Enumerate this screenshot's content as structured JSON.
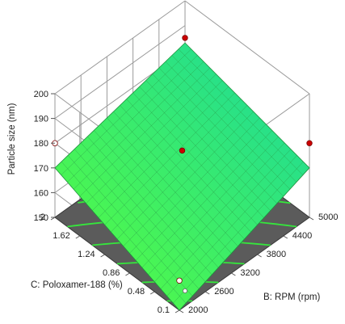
{
  "chart_data": {
    "type": "surface3d",
    "title": "",
    "zlabel": "Particle size  (nm)",
    "xlabel": "B: RPM (rpm)",
    "ylabel": "C: Poloxamer-188 (%)",
    "x_ticks": [
      "2000",
      "2600",
      "3200",
      "3800",
      "4400",
      "5000"
    ],
    "y_ticks": [
      "0.1",
      "0.48",
      "0.86",
      "1.24",
      "1.62",
      "2"
    ],
    "z_ticks": [
      "150",
      "160",
      "170",
      "180",
      "190",
      "200"
    ],
    "xlim": [
      2000,
      5000
    ],
    "ylim": [
      0.1,
      2
    ],
    "zlim": [
      150,
      200
    ],
    "surface_corners": [
      {
        "x": 2000,
        "y": 0.1,
        "z": 150
      },
      {
        "x": 5000,
        "y": 0.1,
        "z": 170
      },
      {
        "x": 2000,
        "y": 2,
        "z": 170
      },
      {
        "x": 5000,
        "y": 2,
        "z": 183
      }
    ],
    "design_points": [
      {
        "x": 2000,
        "y": 0.1,
        "z": 162,
        "color": "#ffffff"
      },
      {
        "x": 5000,
        "y": 0.1,
        "z": 180,
        "color": "#cc0000"
      },
      {
        "x": 2000,
        "y": 2,
        "z": 180,
        "color": "#ffffff"
      },
      {
        "x": 5000,
        "y": 2,
        "z": 185,
        "color": "#cc0000"
      },
      {
        "x": 3500,
        "y": 1.05,
        "z": 177,
        "color": "#cc0000"
      }
    ],
    "contour_values": [
      152,
      156,
      160,
      164,
      168,
      172,
      176,
      180
    ],
    "grid": true,
    "colors": {
      "surface_low": "#5aff3a",
      "surface_high": "#19d7a0",
      "floor": "#5b5b5b",
      "contour": "#35e63c",
      "grid": "#9a9a9a"
    }
  }
}
